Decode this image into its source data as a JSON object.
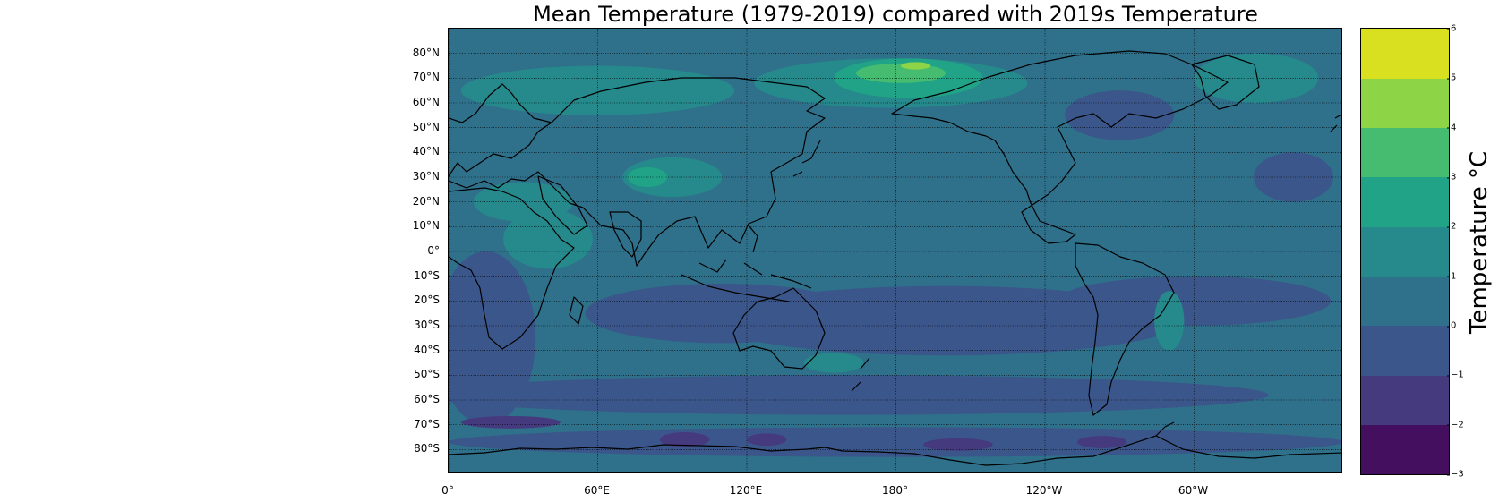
{
  "title": "Mean Temperature (1979-2019) compared with 2019s Temperature",
  "colorbar": {
    "label": "Temperature °C",
    "ticks": [
      "−3",
      "−2",
      "−1",
      "0",
      "1",
      "2",
      "3",
      "4",
      "5",
      "6"
    ],
    "tick_values": [
      -3,
      -2,
      -1,
      0,
      1,
      2,
      3,
      4,
      5,
      6
    ],
    "colors": [
      "#440f5e",
      "#463a7e",
      "#3b568a",
      "#2f708b",
      "#26898b",
      "#20a386",
      "#45bc70",
      "#8dd446",
      "#d9e020"
    ],
    "range": [
      -3,
      6
    ]
  },
  "chart_data": {
    "type": "heatmap",
    "title": "Mean Temperature (1979-2019) compared with 2019s Temperature",
    "xlabel": "",
    "ylabel": "",
    "colorbar_label": "Temperature °C",
    "lat_ticks": [
      "80°N",
      "70°N",
      "60°N",
      "50°N",
      "40°N",
      "30°N",
      "20°N",
      "10°N",
      "0°",
      "10°S",
      "20°S",
      "30°S",
      "40°S",
      "50°S",
      "60°S",
      "70°S",
      "80°S"
    ],
    "lat_values": [
      80,
      70,
      60,
      50,
      40,
      30,
      20,
      10,
      0,
      -10,
      -20,
      -30,
      -40,
      -50,
      -60,
      -70,
      -80
    ],
    "lon_ticks": [
      "0°",
      "60°E",
      "120°E",
      "180°",
      "120°W",
      "60°W"
    ],
    "lon_values": [
      0,
      60,
      120,
      180,
      240,
      300
    ],
    "xlim": [
      0,
      360
    ],
    "ylim": [
      -90,
      90
    ],
    "grid": true,
    "levels": [
      -3,
      -2,
      -1,
      0,
      1,
      2,
      3,
      4,
      5,
      6
    ],
    "background_value": 0.5,
    "regions": [
      {
        "level": -0.5,
        "lon": 200,
        "lat": -28,
        "rx": 95,
        "ry": 14
      },
      {
        "level": -0.5,
        "lon": 300,
        "lat": -20,
        "rx": 55,
        "ry": 10
      },
      {
        "level": -0.5,
        "lon": 110,
        "lat": -25,
        "rx": 55,
        "ry": 12
      },
      {
        "level": -0.5,
        "lon": 15,
        "lat": -35,
        "rx": 20,
        "ry": 35
      },
      {
        "level": -0.5,
        "lon": 160,
        "lat": -58,
        "rx": 170,
        "ry": 8
      },
      {
        "level": -0.5,
        "lon": 270,
        "lat": 55,
        "rx": 22,
        "ry": 10
      },
      {
        "level": -0.5,
        "lon": 340,
        "lat": 30,
        "rx": 16,
        "ry": 10
      },
      {
        "level": -0.5,
        "lon": 180,
        "lat": -77,
        "rx": 180,
        "ry": 6
      },
      {
        "level": -1.5,
        "lon": 25,
        "lat": -69,
        "rx": 20,
        "ry": 2.5
      },
      {
        "level": -1.5,
        "lon": 95,
        "lat": -76,
        "rx": 10,
        "ry": 3
      },
      {
        "level": -1.5,
        "lon": 128,
        "lat": -76,
        "rx": 8,
        "ry": 2.5
      },
      {
        "level": -1.5,
        "lon": 205,
        "lat": -78,
        "rx": 14,
        "ry": 2.5
      },
      {
        "level": -1.5,
        "lon": 263,
        "lat": -77,
        "rx": 10,
        "ry": 2.5
      },
      {
        "level": 1.5,
        "lon": 60,
        "lat": 65,
        "rx": 55,
        "ry": 10
      },
      {
        "level": 1.5,
        "lon": 178,
        "lat": 68,
        "rx": 55,
        "ry": 10
      },
      {
        "level": 1.5,
        "lon": 90,
        "lat": 30,
        "rx": 20,
        "ry": 8
      },
      {
        "level": 1.5,
        "lon": 40,
        "lat": 5,
        "rx": 18,
        "ry": 12
      },
      {
        "level": 1.5,
        "lon": 155,
        "lat": -45,
        "rx": 12,
        "ry": 4
      },
      {
        "level": 1.5,
        "lon": 290,
        "lat": -28,
        "rx": 6,
        "ry": 12
      },
      {
        "level": 1.5,
        "lon": 325,
        "lat": 70,
        "rx": 25,
        "ry": 10
      },
      {
        "level": 1.5,
        "lon": 30,
        "lat": 20,
        "rx": 20,
        "ry": 8
      },
      {
        "level": 2.5,
        "lon": 185,
        "lat": 70,
        "rx": 30,
        "ry": 8
      },
      {
        "level": 2.5,
        "lon": 80,
        "lat": 30,
        "rx": 8,
        "ry": 4
      },
      {
        "level": 3.5,
        "lon": 182,
        "lat": 72,
        "rx": 18,
        "ry": 4
      },
      {
        "level": 4.5,
        "lon": 188,
        "lat": 75,
        "rx": 6,
        "ry": 1.5
      }
    ]
  }
}
